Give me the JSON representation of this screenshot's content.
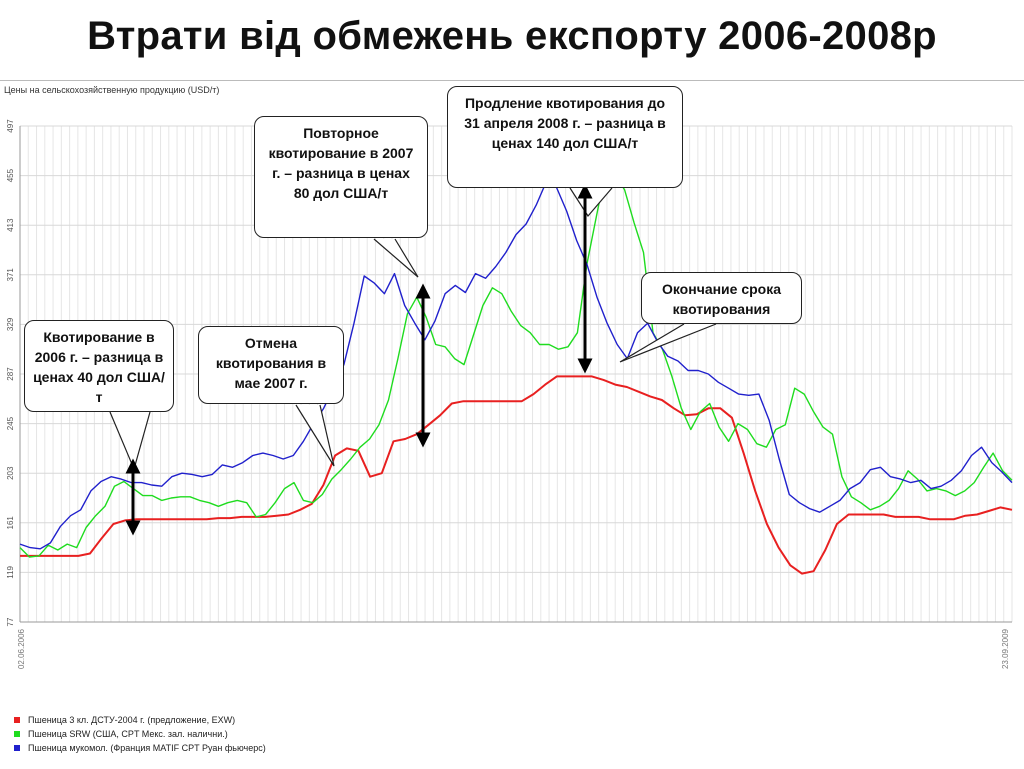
{
  "slide": {
    "title": "Втрати від обмежень експорту 2006-2008р"
  },
  "chart_header": "Цены на сельскохозяйственную продукцию (USD/т)",
  "annotations": [
    {
      "id": "quota-2006",
      "text": "Квотирование в 2006 г. – разница в ценах 40 дол США/т"
    },
    {
      "id": "cancel-2007",
      "text": "Отмена квотирования в мае 2007 г."
    },
    {
      "id": "quota-2007",
      "text": "Повторное квотирование в 2007 г. – разница в ценах 80 дол США/т"
    },
    {
      "id": "extend-2008",
      "text": "Продление квотирования до 31 апреля 2008 г. – разница в ценах 140 дол США/т"
    },
    {
      "id": "end-quota",
      "text": "Окончание срока квотирования"
    }
  ],
  "chart_data": {
    "type": "line",
    "ylabel": "",
    "y_ticks": [
      77,
      119,
      161,
      203,
      245,
      287,
      329,
      371,
      413,
      455,
      497
    ],
    "ylim": [
      77,
      497
    ],
    "x_start_label": "02.06.2006",
    "x_end_label": "23.09.2009",
    "grid": true,
    "legend_position": "bottom-left",
    "series": [
      {
        "name": "Пшеница 3 кл. ДСТУ-2004 г. (предложение, EXW)",
        "color": "#e82020",
        "values": [
          133,
          133,
          133,
          133,
          133,
          133,
          135,
          148,
          160,
          163,
          164,
          164,
          164,
          164,
          164,
          164,
          164,
          165,
          165,
          166,
          166,
          166,
          167,
          168,
          172,
          177,
          193,
          218,
          224,
          222,
          200,
          203,
          230,
          232,
          236,
          244,
          252,
          262,
          264,
          264,
          264,
          264,
          264,
          264,
          270,
          278,
          285,
          285,
          285,
          285,
          282,
          278,
          276,
          272,
          268,
          265,
          258,
          252,
          253,
          258,
          258,
          250,
          220,
          188,
          160,
          140,
          125,
          118,
          120,
          138,
          160,
          168,
          168,
          168,
          168,
          166,
          166,
          166,
          164,
          164,
          164,
          167,
          168,
          171,
          174,
          172
        ]
      },
      {
        "name": "Пшеница SRW (США, CPT Мекс. зал. налични.)",
        "color": "#1fdc1f",
        "values": [
          140,
          132,
          133,
          142,
          138,
          143,
          140,
          157,
          167,
          175,
          192,
          196,
          190,
          184,
          184,
          180,
          182,
          183,
          183,
          180,
          178,
          175,
          178,
          180,
          178,
          166,
          168,
          178,
          190,
          195,
          180,
          178,
          185,
          198,
          206,
          215,
          225,
          232,
          244,
          265,
          300,
          338,
          352,
          335,
          312,
          310,
          300,
          295,
          320,
          345,
          360,
          355,
          340,
          328,
          322,
          312,
          312,
          308,
          310,
          322,
          380,
          420,
          460,
          455,
          443,
          415,
          390,
          322,
          308,
          285,
          258,
          240,
          255,
          262,
          242,
          230,
          245,
          240,
          228,
          225,
          240,
          244,
          275,
          270,
          255,
          242,
          236,
          200,
          183,
          178,
          172,
          175,
          180,
          190,
          205,
          198,
          188,
          190,
          188,
          184,
          188,
          195,
          208,
          220,
          205,
          197
        ]
      },
      {
        "name": "Пшеница мукомол. (Франция MATIF CPT Руан фьючерс)",
        "color": "#2020cc",
        "values": [
          143,
          140,
          139,
          144,
          158,
          167,
          172,
          188,
          196,
          200,
          198,
          195,
          195,
          193,
          192,
          200,
          203,
          202,
          200,
          202,
          210,
          208,
          212,
          218,
          220,
          218,
          215,
          218,
          230,
          245,
          258,
          276,
          295,
          330,
          370,
          364,
          355,
          372,
          345,
          330,
          316,
          332,
          355,
          362,
          356,
          372,
          368,
          378,
          390,
          405,
          414,
          430,
          450,
          445,
          425,
          400,
          380,
          352,
          330,
          312,
          300,
          322,
          330,
          314,
          302,
          298,
          290,
          290,
          287,
          280,
          275,
          270,
          269,
          270,
          248,
          215,
          185,
          178,
          173,
          170,
          175,
          180,
          190,
          195,
          206,
          208,
          200,
          198,
          195,
          197,
          190,
          192,
          197,
          205,
          218,
          225,
          212,
          204,
          195
        ]
      }
    ]
  }
}
